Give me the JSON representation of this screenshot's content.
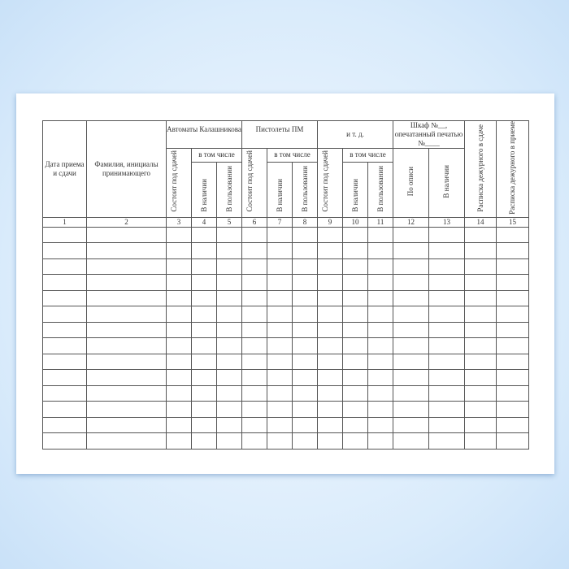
{
  "headers": {
    "c1": "Дата приема и сдачи",
    "c2": "Фамилия, инициалы принимающего",
    "g1": "Автоматы Калашникова",
    "g2": "Пистолеты ПМ",
    "g3": "и т. д.",
    "g4": "Шкаф №__, опечатанный печатью №____",
    "incl": "в том числе",
    "state": "Состоит под сдачей",
    "avail": "В наличии",
    "use": "В пользовании",
    "inv": "По описи",
    "c14": "Расписка дежурного в сдаче",
    "c15": "Расписка дежурного в приеме"
  },
  "column_numbers": [
    "1",
    "2",
    "3",
    "4",
    "5",
    "6",
    "7",
    "8",
    "9",
    "10",
    "11",
    "12",
    "13",
    "14",
    "15"
  ],
  "empty_row_count": 14
}
